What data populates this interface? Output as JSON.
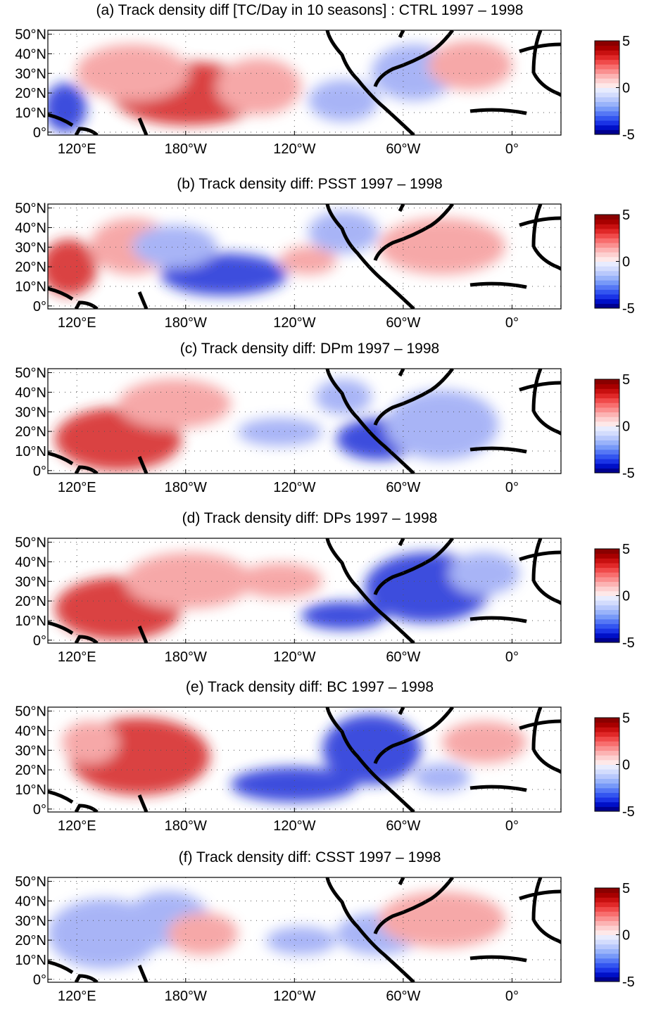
{
  "panels": [
    {
      "title": "(a) Track density diff [TC/Day in 10 seasons] : CTRL 1997 – 1998"
    },
    {
      "title": "(b) Track density diff: PSST 1997 – 1998"
    },
    {
      "title": "(c) Track density diff: DPm 1997 – 1998"
    },
    {
      "title": "(d) Track density diff: DPs 1997 – 1998"
    },
    {
      "title": "(e) Track density diff: BC 1997 – 1998"
    },
    {
      "title": "(f) Track density diff: CSST 1997 – 1998"
    }
  ],
  "axes": {
    "xlim": [
      104,
      387
    ],
    "ylim": [
      -1.5,
      52
    ],
    "xticks": [
      {
        "value": 120,
        "label": "120°E"
      },
      {
        "value": 180,
        "label": "180°W"
      },
      {
        "value": 240,
        "label": "120°W"
      },
      {
        "value": 300,
        "label": "60°W"
      },
      {
        "value": 360,
        "label": "0°"
      }
    ],
    "yticks": [
      {
        "value": 0,
        "label": "0°"
      },
      {
        "value": 10,
        "label": "10°N"
      },
      {
        "value": 20,
        "label": "20°N"
      },
      {
        "value": 30,
        "label": "30°N"
      },
      {
        "value": 40,
        "label": "40°N"
      },
      {
        "value": 50,
        "label": "50°N"
      }
    ]
  },
  "colorbar": {
    "clim": [
      -5,
      5
    ],
    "ticks": [
      -5,
      0,
      5
    ],
    "colors": [
      "#00008f",
      "#0010c8",
      "#1a33e6",
      "#3355f0",
      "#5577f5",
      "#7799f8",
      "#99b3fa",
      "#b8c8fc",
      "#d3dcfd",
      "#e8ecfe",
      "#fee8e8",
      "#fdd0d0",
      "#fcb3b3",
      "#fa9090",
      "#f86e6e",
      "#f04a4a",
      "#e02828",
      "#c81010",
      "#a80000",
      "#8a0000"
    ]
  }
}
